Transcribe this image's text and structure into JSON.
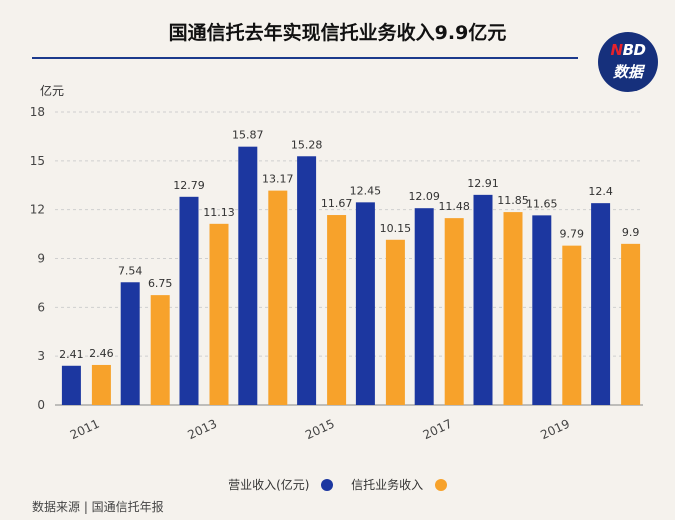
{
  "title": "国通信托去年实现信托业务收入9.9亿元",
  "logo": {
    "line1_red": "N",
    "line1_rest": "BD",
    "line2": "数据"
  },
  "unit_label": "亿元",
  "source": "数据来源 | 国通信托年报",
  "colors": {
    "series1": "#1c37a0",
    "series2": "#f7a22b",
    "title_rule": "#1c3a8c",
    "logo_bg": "#16307c"
  },
  "chart_data": {
    "type": "bar",
    "ylabel": "亿元",
    "ylim": [
      0,
      18
    ],
    "yticks": [
      0,
      3,
      6,
      9,
      12,
      15,
      18
    ],
    "categories": [
      "2011",
      "2012",
      "2013",
      "2014",
      "2015",
      "2016",
      "2017",
      "2018",
      "2019",
      "2020"
    ],
    "xtick_labels": [
      "2011",
      "",
      "2013",
      "",
      "2015",
      "",
      "2017",
      "",
      "2019",
      ""
    ],
    "series": [
      {
        "name": "营业收入(亿元)",
        "values": [
          2.41,
          7.54,
          12.79,
          15.87,
          15.28,
          12.45,
          12.09,
          12.91,
          11.65,
          12.4
        ]
      },
      {
        "name": "信托业务收入",
        "values": [
          2.46,
          6.75,
          11.13,
          13.17,
          11.67,
          10.15,
          11.48,
          11.85,
          9.79,
          9.9
        ]
      }
    ],
    "legend_position": "bottom",
    "grid": true
  }
}
